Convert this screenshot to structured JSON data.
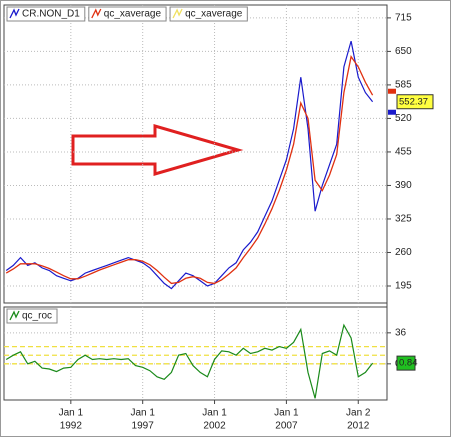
{
  "chart_data": [
    {
      "type": "line",
      "x": [
        1987.5,
        1988,
        1988.5,
        1989,
        1989.5,
        1990,
        1990.5,
        1991,
        1991.5,
        1992,
        1992.5,
        1993,
        1993.5,
        1994,
        1994.5,
        1995,
        1995.5,
        1996,
        1996.5,
        1997,
        1997.5,
        1998,
        1998.5,
        1999,
        1999.5,
        2000,
        2000.5,
        2001,
        2001.5,
        2002,
        2002.5,
        2003,
        2003.5,
        2004,
        2004.5,
        2005,
        2005.5,
        2006,
        2006.5,
        2007,
        2007.5,
        2008,
        2008.5,
        2009,
        2009.5,
        2010,
        2010.5,
        2011,
        2011.5,
        2012,
        2012.5,
        2013
      ],
      "xlim": [
        1987.35,
        2014.0
      ],
      "xticks": [
        1992,
        1997,
        2002,
        2007,
        2012
      ],
      "ylim": [
        162,
        740
      ],
      "yticks": [
        195,
        260,
        325,
        390,
        455,
        520,
        585,
        650,
        715
      ],
      "grid": true,
      "series": [
        {
          "name": "CR.NON_D1",
          "color": "#1a1acc",
          "values": [
            225,
            235,
            250,
            235,
            240,
            230,
            225,
            215,
            210,
            205,
            210,
            220,
            225,
            230,
            235,
            240,
            245,
            250,
            245,
            240,
            230,
            215,
            200,
            190,
            205,
            220,
            215,
            205,
            195,
            200,
            215,
            230,
            240,
            265,
            280,
            300,
            330,
            360,
            400,
            440,
            500,
            600,
            500,
            340,
            390,
            430,
            470,
            620,
            670,
            600,
            570,
            552.37
          ]
        },
        {
          "name": "qc_xaverage",
          "color": "#e03010",
          "values": [
            220,
            228,
            238,
            238,
            238,
            234,
            229,
            222,
            215,
            209,
            209,
            214,
            220,
            226,
            231,
            236,
            241,
            246,
            246,
            243,
            236,
            225,
            212,
            200,
            202,
            210,
            213,
            210,
            202,
            200,
            207,
            218,
            230,
            250,
            268,
            288,
            315,
            345,
            380,
            420,
            470,
            550,
            520,
            400,
            380,
            410,
            450,
            570,
            640,
            620,
            590,
            565
          ]
        }
      ],
      "legend_extra": [
        {
          "name": "qc_xaverage",
          "color": "#f0e060"
        }
      ]
    },
    {
      "type": "line",
      "x": [
        1987.5,
        1988,
        1988.5,
        1989,
        1989.5,
        1990,
        1990.5,
        1991,
        1991.5,
        1992,
        1992.5,
        1993,
        1993.5,
        1994,
        1994.5,
        1995,
        1995.5,
        1996,
        1996.5,
        1997,
        1997.5,
        1998,
        1998.5,
        1999,
        1999.5,
        2000,
        2000.5,
        2001,
        2001.5,
        2002,
        2002.5,
        2003,
        2003.5,
        2004,
        2004.5,
        2005,
        2005.5,
        2006,
        2006.5,
        2007,
        2007.5,
        2008,
        2008.5,
        2009,
        2009.5,
        2010,
        2010.5,
        2011,
        2011.5,
        2012,
        2012.5,
        2013
      ],
      "xlim": [
        1987.35,
        2014.0
      ],
      "xticks": [
        1992,
        1997,
        2002,
        2007,
        2012
      ],
      "xtick_day_labels": [
        "Jan 1",
        "Jan 1",
        "Jan 1",
        "Jan 1",
        "Jan 2"
      ],
      "ylim": [
        -42,
        66
      ],
      "yticks": [
        0,
        36
      ],
      "levels": [
        20,
        10,
        0
      ],
      "grid": true,
      "series": [
        {
          "name": "qc_roc",
          "color": "#1a8a1a",
          "values": [
            5,
            10,
            14,
            0,
            3,
            -5,
            -6,
            -9,
            -5,
            -4,
            5,
            10,
            5,
            6,
            5,
            6,
            5,
            6,
            -2,
            -4,
            -8,
            -15,
            -18,
            -10,
            10,
            12,
            -2,
            -10,
            -15,
            5,
            15,
            14,
            10,
            18,
            12,
            14,
            18,
            16,
            20,
            18,
            25,
            40,
            -10,
            -40,
            12,
            15,
            10,
            45,
            30,
            -15,
            -10,
            0.84
          ]
        }
      ]
    }
  ]
}
